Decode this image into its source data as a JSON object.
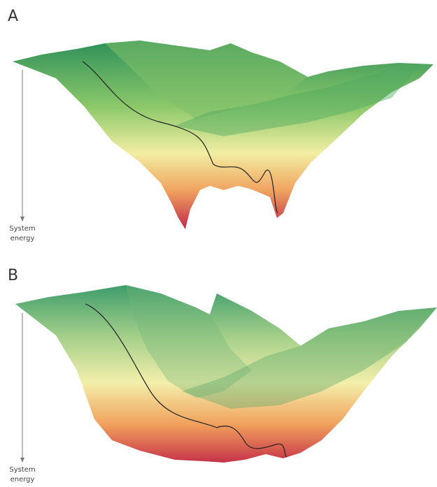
{
  "panels": [
    {
      "label": "A",
      "axis_label": "System energy"
    },
    {
      "label": "B",
      "axis_label": "System energy"
    }
  ]
}
